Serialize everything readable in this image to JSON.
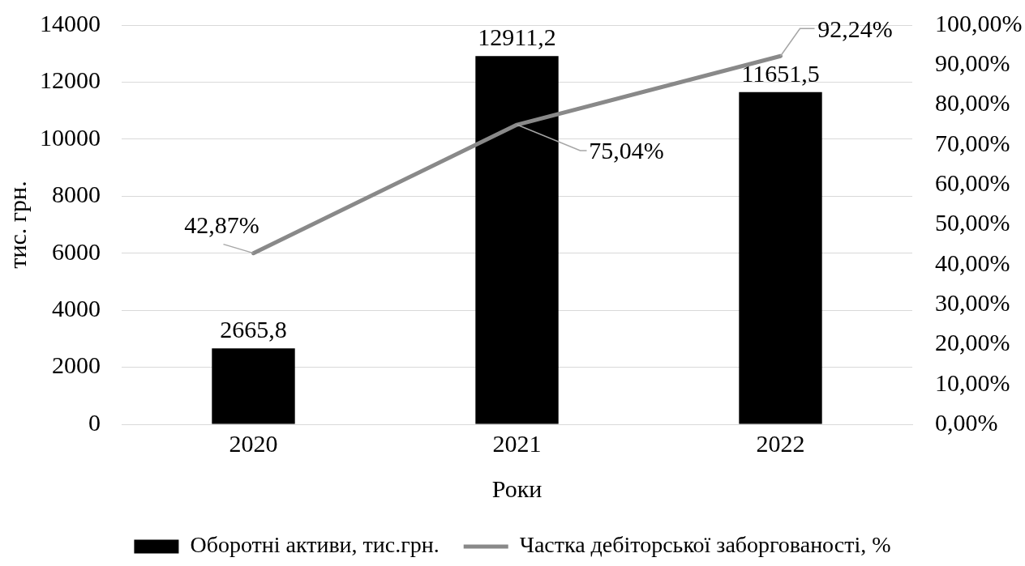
{
  "chart_data": {
    "type": "bar",
    "xlabel": "Роки",
    "ylabel": "тис. грн.",
    "categories": [
      "2020",
      "2021",
      "2022"
    ],
    "series": [
      {
        "name": "Оборотні активи, тис.грн.",
        "color": "#000000",
        "values": [
          2665.8,
          12911.2,
          11651.5
        ],
        "value_labels": [
          "2665,8",
          "12911,2",
          "11651,5"
        ]
      },
      {
        "name": "Частка дебіторської заборгованості, %",
        "type": "line",
        "axis": "y2",
        "color": "#898989",
        "values": [
          42.87,
          75.04,
          92.24
        ],
        "value_labels": [
          "42,87%",
          "75,04%",
          "92,24%"
        ]
      }
    ],
    "ylim": [
      0,
      14000
    ],
    "yticks": [
      0,
      2000,
      4000,
      6000,
      8000,
      10000,
      12000,
      14000
    ],
    "y2lim": [
      0,
      100
    ],
    "y2ticks": [
      {
        "value": 0,
        "label": "0,00%"
      },
      {
        "value": 10,
        "label": "10,00%"
      },
      {
        "value": 20,
        "label": "20,00%"
      },
      {
        "value": 30,
        "label": "30,00%"
      },
      {
        "value": 40,
        "label": "40,00%"
      },
      {
        "value": 50,
        "label": "50,00%"
      },
      {
        "value": 60,
        "label": "60,00%"
      },
      {
        "value": 70,
        "label": "70,00%"
      },
      {
        "value": 80,
        "label": "80,00%"
      },
      {
        "value": 90,
        "label": "90,00%"
      },
      {
        "value": 100,
        "label": "100,00%"
      }
    ],
    "grid": "y",
    "legend": "bottom",
    "marker": "none",
    "line_style": "solid"
  }
}
